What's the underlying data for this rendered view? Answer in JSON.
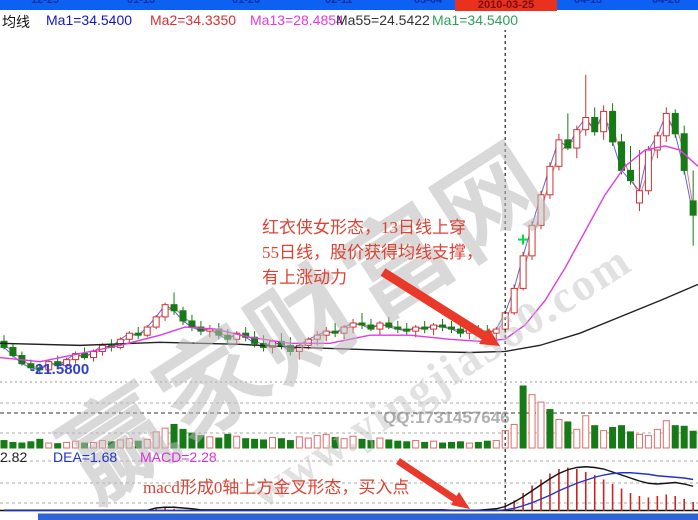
{
  "window": {
    "dates": [
      "12-29",
      "01-13",
      "01-26",
      "02-11",
      "03-04",
      "04-13",
      "04-26"
    ],
    "highlight_date": "2010-03-25"
  },
  "ma_labels": {
    "title": "均线",
    "ma1": "Ma1=34.5400",
    "ma2": "Ma2=34.3350",
    "ma13": "Ma13=28.4854",
    "ma55": "Ma55=24.5422",
    "ma1_green": "Ma1=34.5400"
  },
  "macd_labels": {
    "dif": "2.82",
    "dea": "DEA=1.68",
    "macd": "MACD=2.28"
  },
  "annotations": {
    "pattern_line1": "红衣侠女形态，13日线上穿",
    "pattern_line2": "55日线，股价获得均线支撑，",
    "pattern_line3": "有上涨动力",
    "macd_note": "macd形成0轴上方金叉形态，买入点",
    "low_label": "-21.5800",
    "qq": "QQ:1731457646"
  },
  "watermark": {
    "brand": "赢家财富网",
    "url": "www.yingjia360.com"
  },
  "colors": {
    "topbar_blue": "#0d61f2",
    "highlight_red": "#e8321e",
    "up_candle": "#cc3333",
    "down_candle": "#167a16",
    "ma13_line": "#e23ae2",
    "ma55_line": "#222222",
    "dif_line": "#111111",
    "dea_line": "#2233cc",
    "hist_red": "#cc2222",
    "annotation_red": "#dd4333",
    "arrow_red": "#e8392b",
    "marker_green": "#00dd44"
  },
  "chart_data": {
    "type": "candlestick",
    "title": "",
    "ylim": [
      21.2,
      38.5
    ],
    "crosshair_index": 56,
    "legend": [
      "Ma1",
      "Ma2",
      "Ma13",
      "Ma55"
    ],
    "low_point_value": 21.58,
    "candles": [
      [
        23.2,
        23.5,
        22.8,
        22.9
      ],
      [
        22.9,
        23.1,
        22.4,
        22.5
      ],
      [
        22.5,
        22.7,
        22.0,
        22.1
      ],
      [
        22.1,
        22.3,
        21.8,
        21.9
      ],
      [
        21.9,
        22.1,
        21.58,
        21.8
      ],
      [
        21.8,
        22.3,
        21.6,
        22.2
      ],
      [
        22.2,
        22.5,
        21.9,
        22.0
      ],
      [
        22.0,
        22.4,
        21.8,
        22.3
      ],
      [
        22.3,
        22.7,
        22.1,
        22.6
      ],
      [
        22.6,
        22.9,
        22.3,
        22.4
      ],
      [
        22.4,
        22.8,
        22.2,
        22.7
      ],
      [
        22.7,
        23.1,
        22.5,
        23.0
      ],
      [
        23.0,
        23.3,
        22.7,
        22.9
      ],
      [
        22.9,
        23.4,
        22.8,
        23.3
      ],
      [
        23.3,
        23.7,
        23.1,
        23.6
      ],
      [
        23.6,
        23.9,
        23.3,
        23.5
      ],
      [
        23.5,
        24.0,
        23.4,
        23.9
      ],
      [
        23.9,
        24.5,
        23.8,
        24.4
      ],
      [
        24.4,
        25.1,
        24.2,
        25.0
      ],
      [
        25.0,
        25.6,
        24.5,
        24.7
      ],
      [
        24.7,
        24.9,
        24.0,
        24.2
      ],
      [
        24.2,
        24.5,
        23.7,
        23.9
      ],
      [
        23.9,
        24.2,
        23.5,
        23.7
      ],
      [
        23.7,
        24.0,
        23.4,
        23.8
      ],
      [
        23.8,
        24.1,
        23.3,
        23.5
      ],
      [
        23.5,
        23.8,
        23.1,
        23.3
      ],
      [
        23.3,
        23.7,
        23.0,
        23.6
      ],
      [
        23.6,
        23.9,
        23.2,
        23.4
      ],
      [
        23.4,
        23.7,
        22.9,
        23.1
      ],
      [
        23.1,
        23.5,
        22.7,
        22.9
      ],
      [
        22.9,
        23.3,
        22.6,
        23.2
      ],
      [
        23.2,
        23.6,
        22.8,
        23.0
      ],
      [
        23.0,
        23.4,
        22.5,
        22.7
      ],
      [
        22.7,
        23.1,
        22.3,
        23.0
      ],
      [
        23.0,
        23.4,
        22.8,
        23.3
      ],
      [
        23.3,
        23.7,
        23.0,
        23.5
      ],
      [
        23.5,
        23.9,
        23.2,
        23.7
      ],
      [
        23.7,
        24.1,
        23.4,
        23.6
      ],
      [
        23.6,
        24.0,
        23.3,
        23.9
      ],
      [
        23.9,
        24.3,
        23.6,
        24.1
      ],
      [
        24.1,
        24.6,
        23.8,
        24.0
      ],
      [
        24.0,
        24.3,
        23.7,
        23.8
      ],
      [
        23.8,
        24.2,
        23.5,
        24.1
      ],
      [
        24.1,
        24.4,
        23.8,
        23.9
      ],
      [
        23.9,
        24.2,
        23.6,
        23.8
      ],
      [
        23.8,
        24.1,
        23.5,
        23.7
      ],
      [
        23.7,
        24.0,
        23.4,
        23.9
      ],
      [
        23.9,
        24.2,
        23.6,
        23.8
      ],
      [
        23.8,
        24.1,
        23.5,
        24.0
      ],
      [
        24.0,
        24.3,
        23.7,
        23.9
      ],
      [
        23.9,
        24.2,
        23.6,
        23.8
      ],
      [
        23.8,
        24.1,
        23.4,
        23.6
      ],
      [
        23.6,
        23.9,
        23.3,
        23.8
      ],
      [
        23.8,
        24.0,
        23.5,
        23.7
      ],
      [
        23.7,
        24.0,
        23.4,
        23.6
      ],
      [
        23.6,
        23.9,
        23.3,
        23.8
      ],
      [
        23.8,
        24.7,
        23.6,
        24.6
      ],
      [
        24.6,
        26.0,
        24.5,
        25.8
      ],
      [
        25.8,
        27.6,
        25.7,
        27.4
      ],
      [
        27.4,
        29.1,
        27.2,
        28.9
      ],
      [
        28.9,
        30.6,
        28.7,
        30.4
      ],
      [
        30.4,
        32.0,
        30.2,
        31.8
      ],
      [
        31.8,
        33.4,
        31.6,
        33.1
      ],
      [
        33.1,
        34.4,
        32.6,
        32.7
      ],
      [
        32.7,
        33.8,
        32.2,
        33.6
      ],
      [
        33.6,
        36.3,
        33.3,
        34.2
      ],
      [
        34.2,
        34.7,
        33.3,
        33.5
      ],
      [
        33.5,
        34.8,
        33.1,
        34.5
      ],
      [
        34.5,
        34.9,
        32.8,
        33.0
      ],
      [
        33.0,
        33.4,
        31.4,
        31.6
      ],
      [
        31.6,
        32.8,
        30.9,
        31.1
      ],
      [
        30.0,
        32.6,
        29.6,
        30.6
      ],
      [
        30.6,
        32.8,
        30.4,
        32.6
      ],
      [
        32.6,
        33.5,
        32.2,
        33.3
      ],
      [
        33.3,
        34.7,
        33.0,
        34.4
      ],
      [
        34.4,
        34.6,
        33.2,
        33.4
      ],
      [
        33.4,
        33.8,
        31.4,
        31.6
      ],
      [
        30.1,
        31.6,
        27.9,
        29.4
      ]
    ],
    "volumes": [
      12,
      9,
      8,
      10,
      14,
      8,
      7,
      9,
      11,
      8,
      9,
      12,
      10,
      13,
      15,
      11,
      14,
      26,
      32,
      38,
      30,
      24,
      20,
      18,
      16,
      22,
      19,
      15,
      14,
      13,
      17,
      15,
      12,
      18,
      16,
      20,
      22,
      17,
      15,
      19,
      14,
      12,
      16,
      13,
      11,
      10,
      12,
      9,
      11,
      8,
      9,
      10,
      8,
      9,
      11,
      12,
      28,
      38,
      100,
      86,
      74,
      62,
      46,
      42,
      30,
      52,
      36,
      28,
      33,
      36,
      26,
      22,
      20,
      30,
      44,
      36,
      35,
      27
    ],
    "volume_color_overrides": {
      "58": "g",
      "61": "g"
    },
    "ma55_points": [
      [
        0,
        23.1
      ],
      [
        80,
        23.0
      ],
      [
        160,
        23.15
      ],
      [
        240,
        23.05
      ],
      [
        300,
        22.9
      ],
      [
        360,
        22.8
      ],
      [
        420,
        22.7
      ],
      [
        470,
        22.65
      ],
      [
        505,
        22.7
      ],
      [
        540,
        23.0
      ],
      [
        580,
        23.6
      ],
      [
        620,
        24.4
      ],
      [
        660,
        25.2
      ],
      [
        698,
        26.0
      ]
    ],
    "ma13_points": [
      [
        0,
        22.4
      ],
      [
        40,
        22.2
      ],
      [
        80,
        22.6
      ],
      [
        120,
        23.0
      ],
      [
        160,
        23.5
      ],
      [
        185,
        23.9
      ],
      [
        215,
        23.8
      ],
      [
        250,
        23.4
      ],
      [
        290,
        23.1
      ],
      [
        330,
        23.1
      ],
      [
        370,
        23.5
      ],
      [
        410,
        23.5
      ],
      [
        450,
        23.3
      ],
      [
        480,
        23.2
      ],
      [
        505,
        23.3
      ],
      [
        525,
        24.0
      ],
      [
        545,
        25.2
      ],
      [
        565,
        26.8
      ],
      [
        585,
        28.6
      ],
      [
        605,
        30.4
      ],
      [
        625,
        31.8
      ],
      [
        645,
        32.6
      ],
      [
        665,
        32.8
      ],
      [
        680,
        32.6
      ],
      [
        698,
        31.8
      ]
    ],
    "buy_marker": {
      "x": 523,
      "price": 28.2
    },
    "macd": {
      "dif": [
        0.05,
        0.05,
        0.05,
        0.05,
        0.05,
        0.05,
        0.05,
        0.05,
        0.05,
        0.05,
        0.05,
        0.05,
        0.05,
        0.05,
        0.05,
        0.05,
        0.05,
        0.2,
        0.25,
        0.25,
        0.2,
        0.15,
        0.08,
        0.08,
        0.08,
        0.08,
        0.08,
        0.08,
        0.08,
        0.08,
        0.08,
        0.08,
        0.08,
        0.08,
        0.08,
        0.08,
        0.08,
        0.08,
        0.08,
        0.08,
        0.08,
        0.08,
        0.08,
        0.08,
        0.08,
        0.08,
        0.08,
        0.08,
        0.08,
        0.08,
        0.05,
        0.05,
        0.05,
        0.05,
        0.1,
        0.15,
        0.3,
        0.6,
        0.95,
        1.35,
        1.75,
        2.15,
        2.5,
        2.75,
        2.9,
        2.95,
        2.9,
        2.8,
        2.6,
        2.4,
        2.2,
        2.0,
        1.85,
        1.8,
        1.85,
        1.9,
        1.8,
        1.65
      ],
      "dea": [
        0.03,
        0.03,
        0.03,
        0.03,
        0.03,
        0.03,
        0.03,
        0.03,
        0.03,
        0.03,
        0.03,
        0.03,
        0.03,
        0.03,
        0.03,
        0.03,
        0.03,
        0.03,
        0.03,
        0.03,
        0.03,
        0.03,
        0.03,
        0.03,
        0.03,
        0.03,
        0.03,
        0.03,
        0.03,
        0.03,
        0.03,
        0.03,
        0.03,
        0.03,
        0.03,
        0.03,
        0.03,
        0.03,
        0.03,
        0.03,
        0.03,
        0.03,
        0.03,
        0.03,
        0.03,
        0.03,
        0.03,
        0.03,
        0.03,
        0.03,
        0.03,
        0.03,
        0.03,
        0.03,
        0.03,
        0.03,
        0.08,
        0.18,
        0.35,
        0.55,
        0.8,
        1.05,
        1.35,
        1.6,
        1.85,
        2.05,
        2.25,
        2.4,
        2.5,
        2.55,
        2.55,
        2.5,
        2.45,
        2.35,
        2.3,
        2.25,
        2.2,
        2.1
      ],
      "hist": [
        0,
        0,
        0,
        0,
        0,
        0,
        0,
        0,
        0,
        0,
        0,
        0,
        0,
        0,
        0,
        0,
        0,
        0.15,
        0.2,
        0.15,
        0,
        0,
        0,
        0,
        0,
        0,
        0,
        0,
        0,
        0,
        0,
        0,
        0,
        0,
        0,
        0,
        0,
        0,
        0,
        0,
        0,
        0,
        0,
        0,
        0,
        0,
        0,
        0,
        0,
        0,
        0,
        0,
        0,
        0,
        0,
        0,
        0.3,
        0.7,
        1.2,
        1.7,
        2.1,
        2.5,
        2.8,
        2.9,
        2.8,
        2.6,
        2.4,
        2.1,
        1.8,
        1.5,
        1.2,
        1.0,
        0.9,
        1.0,
        1.1,
        1.0,
        0.8,
        0.6
      ]
    }
  }
}
